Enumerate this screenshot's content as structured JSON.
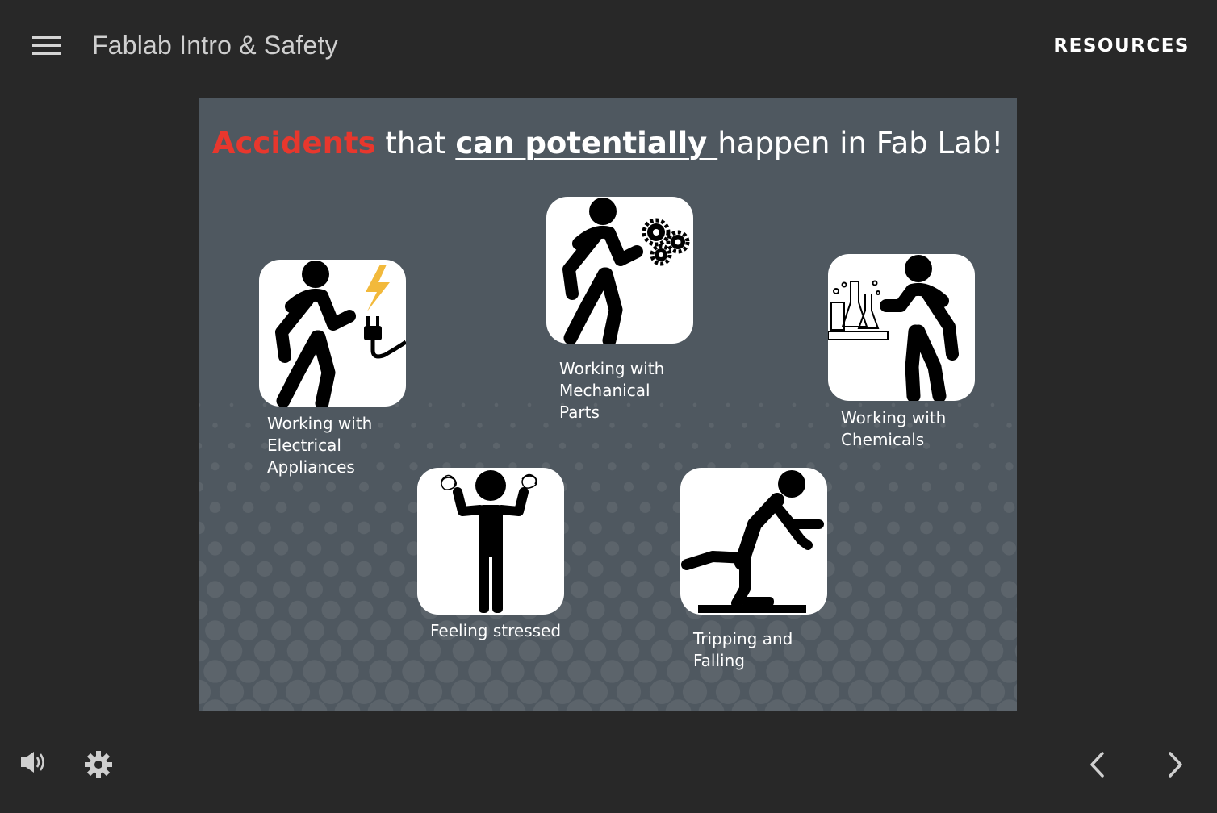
{
  "header": {
    "course_title": "Fablab Intro & Safety",
    "resources_label": "RESOURCES"
  },
  "slide": {
    "title": {
      "accent": "Accidents",
      "part1": " that ",
      "emphasis": "can potentially ",
      "part2": "happen in Fab Lab!"
    },
    "accent_color": "#e8372d",
    "background_color": "#4f5860",
    "items": [
      {
        "line1": "Working with",
        "line2": "Electrical",
        "line3": "Appliances",
        "icon": "electrical-hazard-icon"
      },
      {
        "line1": "Working with",
        "line2": "Mechanical",
        "line3": "Parts",
        "icon": "mechanical-gears-icon"
      },
      {
        "line1": "Working with",
        "line2": "Chemicals",
        "icon": "chemicals-icon"
      },
      {
        "line1": "Feeling stressed",
        "icon": "stressed-person-icon"
      },
      {
        "line1": "Tripping and",
        "line2": "Falling",
        "icon": "tripping-icon"
      }
    ]
  },
  "controls": {
    "volume_icon": "volume-icon",
    "settings_icon": "gear-icon",
    "prev_icon": "chevron-left-icon",
    "next_icon": "chevron-right-icon"
  }
}
